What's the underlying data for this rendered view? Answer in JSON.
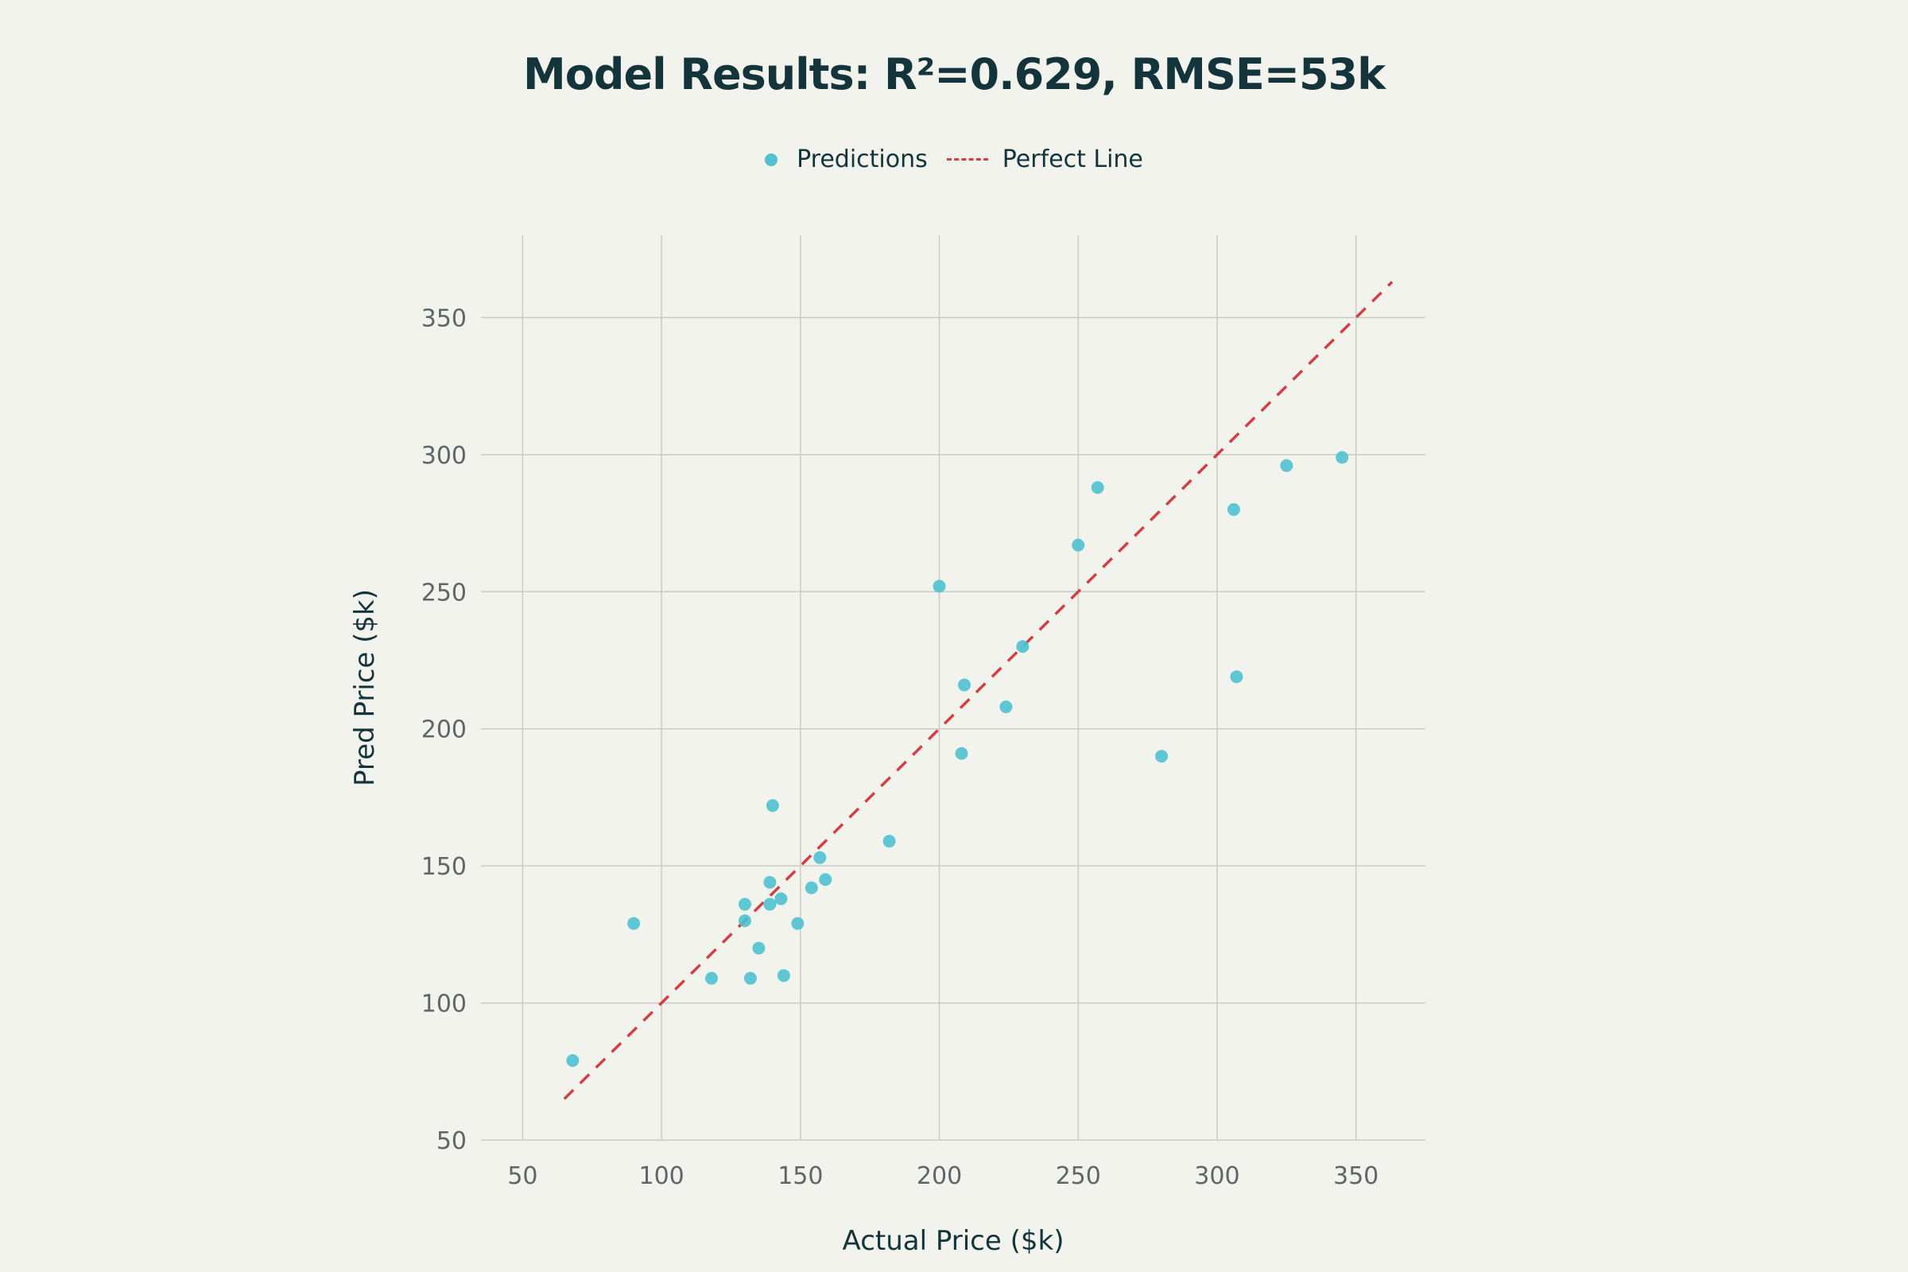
{
  "chart_data": {
    "type": "scatter",
    "title": "Model Results: R²=0.629, RMSE=53k",
    "xlabel": "Actual Price ($k)",
    "ylabel": "Pred Price ($k)",
    "xlim": [
      35,
      375
    ],
    "ylim": [
      50,
      380
    ],
    "xticks": [
      50,
      100,
      150,
      200,
      250,
      300,
      350
    ],
    "yticks": [
      50,
      100,
      150,
      200,
      250,
      300,
      350
    ],
    "grid": true,
    "legend_position": "top-center",
    "series": [
      {
        "name": "Predictions",
        "kind": "scatter",
        "color": "#4fc1cf",
        "points": [
          [
            68,
            79
          ],
          [
            90,
            129
          ],
          [
            118,
            109
          ],
          [
            130,
            130
          ],
          [
            130,
            136
          ],
          [
            132,
            109
          ],
          [
            135,
            120
          ],
          [
            139,
            136
          ],
          [
            139,
            144
          ],
          [
            140,
            172
          ],
          [
            143,
            138
          ],
          [
            144,
            110
          ],
          [
            149,
            129
          ],
          [
            154,
            142
          ],
          [
            157,
            153
          ],
          [
            159,
            145
          ],
          [
            182,
            159
          ],
          [
            200,
            252
          ],
          [
            208,
            191
          ],
          [
            209,
            216
          ],
          [
            224,
            208
          ],
          [
            230,
            230
          ],
          [
            250,
            267
          ],
          [
            257,
            288
          ],
          [
            280,
            190
          ],
          [
            306,
            280
          ],
          [
            307,
            219
          ],
          [
            325,
            296
          ],
          [
            345,
            299
          ]
        ]
      },
      {
        "name": "Perfect Line",
        "kind": "line",
        "dash": true,
        "color": "#d13f43",
        "points": [
          [
            65,
            65
          ],
          [
            363,
            363
          ]
        ]
      }
    ]
  }
}
